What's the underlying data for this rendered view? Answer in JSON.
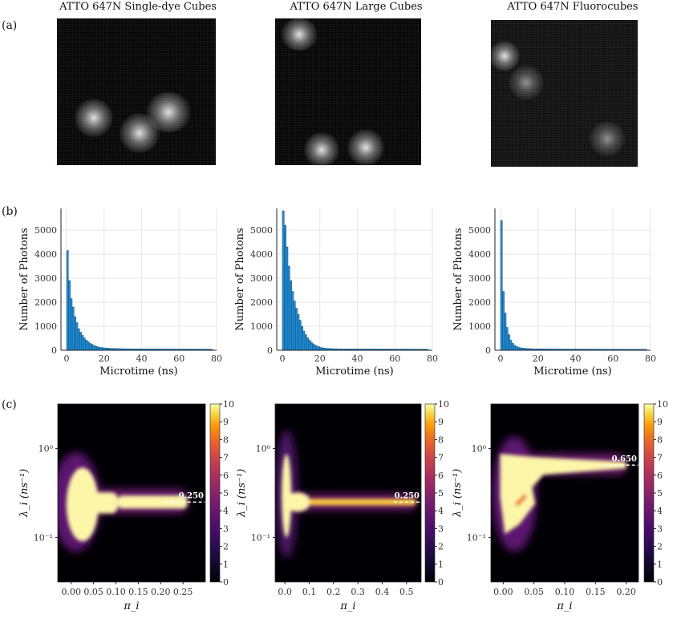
{
  "row_labels": [
    "(a)",
    "(b)",
    "(c)"
  ],
  "image_titles": [
    "ATTO 647N Single-dye Cubes",
    "ATTO 647N Large Cubes",
    "ATTO 647N Fluorocubes"
  ],
  "chart_data": [
    {
      "type": "bar",
      "panel": "b1",
      "xlabel": "Microtime (ns)",
      "ylabel": "Number of Photons",
      "xlim": [
        -3,
        80
      ],
      "ylim": [
        0,
        5900
      ],
      "xticks": [
        0,
        20,
        40,
        60,
        80
      ],
      "yticks": [
        0,
        1000,
        2000,
        3000,
        4000,
        5000
      ],
      "bin_width": 1,
      "bin_values": [
        4150,
        2900,
        2150,
        1800,
        1400,
        1150,
        900,
        750,
        620,
        520,
        430,
        360,
        300,
        250,
        210,
        180,
        150,
        130,
        115,
        105,
        95,
        90,
        85,
        80,
        78,
        75,
        72,
        70,
        68,
        66,
        65,
        64,
        63,
        62,
        62,
        61,
        60,
        60,
        59,
        59,
        58,
        58,
        57,
        57,
        56,
        56,
        56,
        55,
        55,
        55,
        54,
        54,
        54,
        53,
        53,
        53,
        53,
        52,
        52,
        52,
        52,
        51,
        51,
        51,
        51,
        50,
        50,
        50,
        50,
        50,
        49,
        49,
        49,
        49,
        48,
        48,
        48,
        40
      ]
    },
    {
      "type": "bar",
      "panel": "b2",
      "xlabel": "Microtime (ns)",
      "ylabel": "Number of Photons",
      "xlim": [
        -3,
        80
      ],
      "ylim": [
        0,
        5900
      ],
      "xticks": [
        0,
        20,
        40,
        60,
        80
      ],
      "yticks": [
        0,
        1000,
        2000,
        3000,
        4000,
        5000
      ],
      "bin_width": 1,
      "bin_values": [
        5800,
        5200,
        4300,
        3500,
        2900,
        2450,
        2050,
        1750,
        1500,
        1250,
        1000,
        800,
        650,
        520,
        420,
        340,
        270,
        220,
        180,
        150,
        120,
        100,
        90,
        80,
        75,
        70,
        68,
        66,
        64,
        63,
        62,
        61,
        60,
        60,
        59,
        59,
        58,
        58,
        57,
        57,
        56,
        56,
        56,
        55,
        55,
        55,
        54,
        54,
        54,
        53,
        53,
        53,
        53,
        52,
        52,
        52,
        52,
        51,
        51,
        51,
        51,
        50,
        50,
        50,
        50,
        50,
        49,
        49,
        49,
        49,
        48,
        48,
        48,
        48,
        47,
        47,
        47,
        40
      ]
    },
    {
      "type": "bar",
      "panel": "b3",
      "xlabel": "Microtime (ns)",
      "ylabel": "Number of Photons",
      "xlim": [
        -3,
        80
      ],
      "ylim": [
        0,
        5900
      ],
      "xticks": [
        0,
        20,
        40,
        60,
        80
      ],
      "yticks": [
        0,
        1000,
        2000,
        3000,
        4000,
        5000
      ],
      "bin_width": 1,
      "bin_values": [
        5400,
        2450,
        1550,
        950,
        650,
        420,
        290,
        210,
        160,
        130,
        110,
        95,
        85,
        78,
        72,
        68,
        65,
        63,
        61,
        60,
        59,
        58,
        57,
        56,
        56,
        55,
        55,
        54,
        54,
        54,
        53,
        53,
        53,
        52,
        52,
        52,
        52,
        51,
        51,
        51,
        51,
        50,
        50,
        50,
        50,
        50,
        49,
        49,
        49,
        49,
        49,
        48,
        48,
        48,
        48,
        48,
        47,
        47,
        47,
        47,
        47,
        47,
        46,
        46,
        46,
        46,
        46,
        46,
        45,
        45,
        45,
        45,
        45,
        45,
        45,
        44,
        44,
        40
      ]
    },
    {
      "type": "heatmap",
      "panel": "c1",
      "xlabel": "π_i",
      "ylabel": "λ_i (ns⁻¹)",
      "xlim": [
        -0.03,
        0.3
      ],
      "ylim_log10": [
        -1.5,
        0.5
      ],
      "xticks": [
        0.0,
        0.05,
        0.1,
        0.15,
        0.2,
        0.25
      ],
      "xtick_labels": [
        "0.00",
        "0.05",
        "0.10",
        "0.15",
        "0.20",
        "0.25"
      ],
      "ytick_labels": [
        "10⁰",
        "10⁻¹"
      ],
      "colorbar_range": [
        0,
        10
      ],
      "colorbar_ticks": [
        0,
        1,
        2,
        3,
        4,
        5,
        6,
        7,
        8,
        9,
        10
      ],
      "true_value_label": "0.250",
      "true_value_lambda": 0.25,
      "true_value_pi_max": 0.26,
      "features": [
        {
          "pi": 0.02,
          "lambda": 0.22,
          "intensity": 10
        },
        {
          "pi": 0.12,
          "lambda": 0.25,
          "intensity": 9
        },
        {
          "pi": 0.25,
          "lambda": 0.25,
          "intensity": 8
        }
      ]
    },
    {
      "type": "heatmap",
      "panel": "c2",
      "xlabel": "π_i",
      "ylabel": "λ_i (ns⁻¹)",
      "xlim": [
        -0.04,
        0.56
      ],
      "ylim_log10": [
        -1.5,
        0.5
      ],
      "xticks": [
        0.0,
        0.1,
        0.2,
        0.3,
        0.4,
        0.5
      ],
      "xtick_labels": [
        "0.0",
        "0.1",
        "0.2",
        "0.3",
        "0.4",
        "0.5"
      ],
      "ytick_labels": [
        "10⁰",
        "10⁻¹"
      ],
      "colorbar_range": [
        0,
        10
      ],
      "colorbar_ticks": [
        0,
        1,
        2,
        3,
        4,
        5,
        6,
        7,
        8,
        9,
        10
      ],
      "true_value_label": "0.250",
      "true_value_lambda": 0.25,
      "true_value_pi_max": 0.54,
      "features": [
        {
          "pi": 0.01,
          "lambda": 0.25,
          "intensity": 10
        },
        {
          "pi": 0.3,
          "lambda": 0.25,
          "intensity": 7
        }
      ]
    },
    {
      "type": "heatmap",
      "panel": "c3",
      "xlabel": "π_i",
      "ylabel": "λ_i (ns⁻¹)",
      "xlim": [
        -0.02,
        0.22
      ],
      "ylim_log10": [
        -1.5,
        0.5
      ],
      "xticks": [
        0.0,
        0.05,
        0.1,
        0.15,
        0.2
      ],
      "xtick_labels": [
        "0.00",
        "0.05",
        "0.10",
        "0.15",
        "0.20"
      ],
      "ytick_labels": [
        "10⁰",
        "10⁻¹"
      ],
      "colorbar_range": [
        0,
        10
      ],
      "colorbar_ticks": [
        0,
        1,
        2,
        3,
        4,
        5,
        6,
        7,
        8,
        9,
        10
      ],
      "true_value_label": "0.650",
      "true_value_lambda": 0.65,
      "true_value_pi_max": 0.2,
      "features": [
        {
          "pi": 0.02,
          "lambda": 0.45,
          "intensity": 10
        },
        {
          "pi": 0.12,
          "lambda": 0.7,
          "intensity": 9
        }
      ]
    }
  ]
}
